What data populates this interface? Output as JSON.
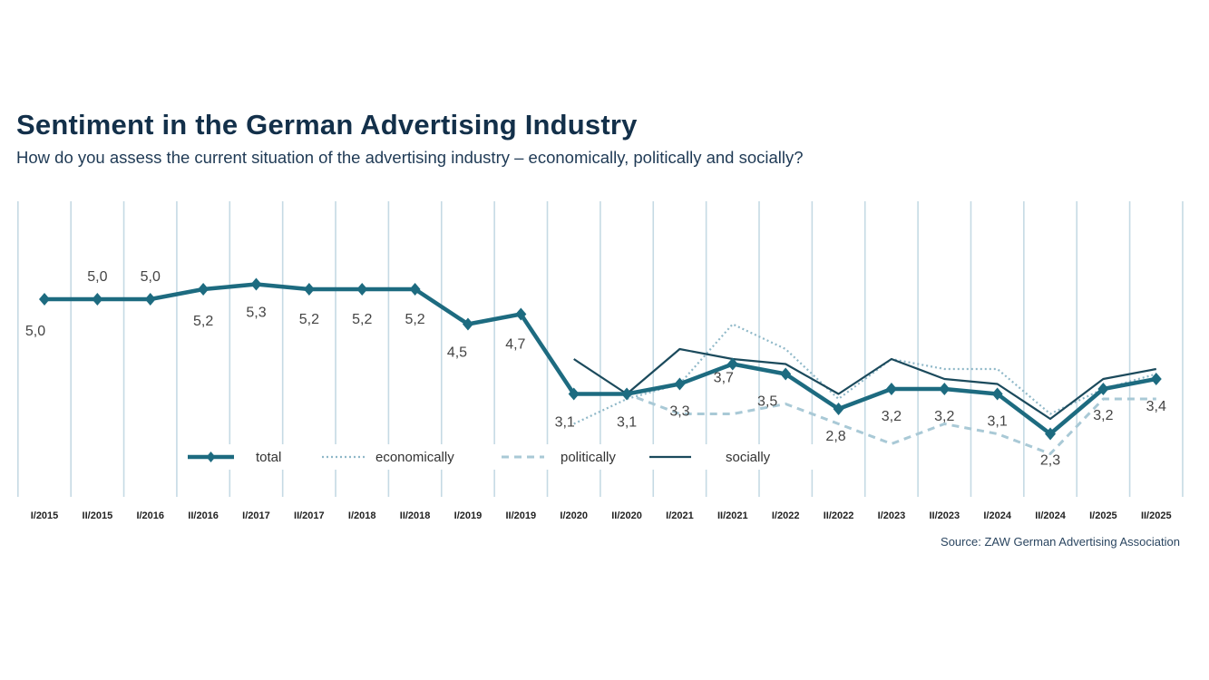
{
  "header": {
    "title": "Sentiment in the German Advertising Industry",
    "subtitle": "How do you assess the current situation of the advertising industry – economically, politically and socially?"
  },
  "source": "Source: ZAW German Advertising Association",
  "chart_data": {
    "type": "line",
    "title": "Sentiment in the German Advertising Industry",
    "xlabel": "",
    "ylabel": "",
    "ylim": [
      1,
      7
    ],
    "grid": "vertical",
    "legend_position": "bottom-center",
    "categories": [
      "I/2015",
      "II/2015",
      "I/2016",
      "II/2016",
      "I/2017",
      "II/2017",
      "I/2018",
      "II/2018",
      "I/2019",
      "II/2019",
      "I/2020",
      "II/2020",
      "I/2021",
      "II/2021",
      "I/2022",
      "II/2022",
      "I/2023",
      "II/2023",
      "I/2024",
      "II/2024",
      "I/2025",
      "II/2025"
    ],
    "series": [
      {
        "name": "total",
        "style": "solid-thick-diamond",
        "color": "#1d6b80",
        "values": [
          5.0,
          5.0,
          5.0,
          5.2,
          5.3,
          5.2,
          5.2,
          5.2,
          4.5,
          4.7,
          3.1,
          3.1,
          3.3,
          3.7,
          3.5,
          2.8,
          3.2,
          3.2,
          3.1,
          2.3,
          3.2,
          3.4
        ],
        "labels": [
          "5,0",
          "5,0",
          "5,0",
          "5,2",
          "5,3",
          "5,2",
          "5,2",
          "5,2",
          "4,5",
          "4,7",
          "3,1",
          "3,1",
          "3,3",
          "3,7",
          "3,5",
          "2,8",
          "3,2",
          "3,2",
          "3,1",
          "2,3",
          "3,2",
          "3,4"
        ]
      },
      {
        "name": "economically",
        "style": "dotted",
        "color": "#8fb8c8",
        "values": [
          null,
          null,
          null,
          null,
          null,
          null,
          null,
          null,
          null,
          null,
          2.5,
          3.0,
          3.3,
          4.5,
          4.0,
          3.0,
          3.8,
          3.6,
          3.6,
          2.7,
          3.2,
          3.5
        ]
      },
      {
        "name": "politically",
        "style": "dashed",
        "color": "#a9c9d6",
        "values": [
          null,
          null,
          null,
          null,
          null,
          null,
          null,
          null,
          null,
          null,
          3.1,
          3.1,
          2.7,
          2.7,
          2.9,
          2.5,
          2.1,
          2.5,
          2.3,
          1.9,
          3.0,
          3.0
        ]
      },
      {
        "name": "socially",
        "style": "solid",
        "color": "#1b4a5c",
        "values": [
          null,
          null,
          null,
          null,
          null,
          null,
          null,
          null,
          null,
          null,
          3.8,
          3.1,
          4.0,
          3.8,
          3.7,
          3.1,
          3.8,
          3.4,
          3.3,
          2.6,
          3.4,
          3.6
        ]
      }
    ]
  }
}
